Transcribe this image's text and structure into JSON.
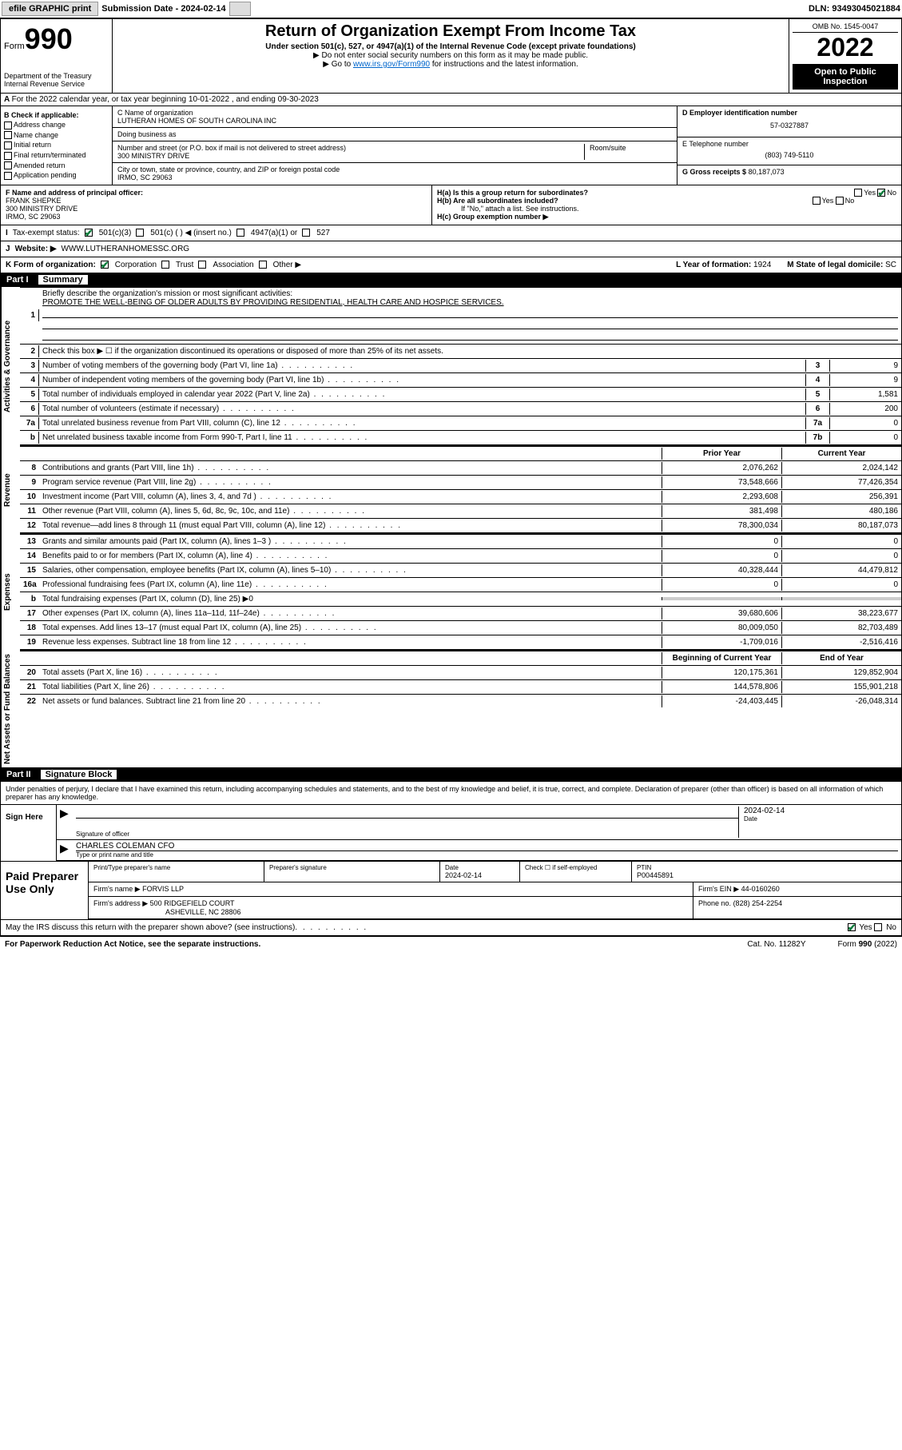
{
  "header": {
    "efile": "efile GRAPHIC print",
    "submission_label": "Submission Date - 2024-02-14",
    "dln": "DLN: 93493045021884"
  },
  "form_head": {
    "form_word": "Form",
    "form_num": "990",
    "dept": "Department of the Treasury",
    "irs": "Internal Revenue Service",
    "title": "Return of Organization Exempt From Income Tax",
    "subtitle": "Under section 501(c), 527, or 4947(a)(1) of the Internal Revenue Code (except private foundations)",
    "note1": "▶ Do not enter social security numbers on this form as it may be made public.",
    "note2_pre": "▶ Go to ",
    "note2_link": "www.irs.gov/Form990",
    "note2_post": " for instructions and the latest information.",
    "omb": "OMB No. 1545-0047",
    "year": "2022",
    "open": "Open to Public Inspection"
  },
  "row_a": "For the 2022 calendar year, or tax year beginning 10-01-2022   , and ending 09-30-2023",
  "col_b": {
    "header": "B Check if applicable:",
    "items": [
      "Address change",
      "Name change",
      "Initial return",
      "Final return/terminated",
      "Amended return",
      "Application pending"
    ]
  },
  "col_c": {
    "c_label": "C Name of organization",
    "org_name": "LUTHERAN HOMES OF SOUTH CAROLINA INC",
    "dba_label": "Doing business as",
    "dba": "",
    "addr_label": "Number and street (or P.O. box if mail is not delivered to street address)",
    "room_label": "Room/suite",
    "street": "300 MINISTRY DRIVE",
    "city_label": "City or town, state or province, country, and ZIP or foreign postal code",
    "city": "IRMO, SC  29063",
    "f_label": "F Name and address of principal officer:",
    "officer_name": "FRANK SHEPKE",
    "officer_addr1": "300 MINISTRY DRIVE",
    "officer_addr2": "IRMO, SC  29063"
  },
  "col_d": {
    "d_label": "D Employer identification number",
    "ein": "57-0327887",
    "e_label": "E Telephone number",
    "phone": "(803) 749-5110",
    "g_label": "G Gross receipts $",
    "gross": "80,187,073",
    "ha_label": "H(a)  Is this a group return for subordinates?",
    "hb_label": "H(b)  Are all subordinates included?",
    "hb_note": "If \"No,\" attach a list. See instructions.",
    "hc_label": "H(c)  Group exemption number ▶",
    "yes": "Yes",
    "no": "No"
  },
  "row_i": {
    "label": "Tax-exempt status:",
    "opt1": "501(c)(3)",
    "opt2": "501(c) (   ) ◀ (insert no.)",
    "opt3": "4947(a)(1) or",
    "opt4": "527"
  },
  "row_j": {
    "label": "Website: ▶",
    "val": "WWW.LUTHERANHOMESSC.ORG"
  },
  "row_k": {
    "label": "K Form of organization:",
    "opts": [
      "Corporation",
      "Trust",
      "Association",
      "Other ▶"
    ],
    "l_label": "L Year of formation:",
    "l_val": "1924",
    "m_label": "M State of legal domicile:",
    "m_val": "SC"
  },
  "part1": {
    "part": "Part I",
    "title": "Summary",
    "vlabels": [
      "Activities & Governance",
      "Revenue",
      "Expenses",
      "Net Assets or Fund Balances"
    ],
    "l1_label": "Briefly describe the organization's mission or most significant activities:",
    "l1_text": "PROMOTE THE WELL-BEING OF OLDER ADULTS BY PROVIDING RESIDENTIAL, HEALTH CARE AND HOSPICE SERVICES.",
    "l2": "Check this box ▶ ☐  if the organization discontinued its operations or disposed of more than 25% of its net assets.",
    "lines_gov": [
      {
        "n": "3",
        "d": "Number of voting members of the governing body (Part VI, line 1a)",
        "b": "3",
        "v": "9"
      },
      {
        "n": "4",
        "d": "Number of independent voting members of the governing body (Part VI, line 1b)",
        "b": "4",
        "v": "9"
      },
      {
        "n": "5",
        "d": "Total number of individuals employed in calendar year 2022 (Part V, line 2a)",
        "b": "5",
        "v": "1,581"
      },
      {
        "n": "6",
        "d": "Total number of volunteers (estimate if necessary)",
        "b": "6",
        "v": "200"
      },
      {
        "n": "7a",
        "d": "Total unrelated business revenue from Part VIII, column (C), line 12",
        "b": "7a",
        "v": "0"
      },
      {
        "n": "b",
        "d": "Net unrelated business taxable income from Form 990-T, Part I, line 11",
        "b": "7b",
        "v": "0"
      }
    ],
    "py_label": "Prior Year",
    "cy_label": "Current Year",
    "lines_rev": [
      {
        "n": "8",
        "d": "Contributions and grants (Part VIII, line 1h)",
        "py": "2,076,262",
        "cy": "2,024,142"
      },
      {
        "n": "9",
        "d": "Program service revenue (Part VIII, line 2g)",
        "py": "73,548,666",
        "cy": "77,426,354"
      },
      {
        "n": "10",
        "d": "Investment income (Part VIII, column (A), lines 3, 4, and 7d )",
        "py": "2,293,608",
        "cy": "256,391"
      },
      {
        "n": "11",
        "d": "Other revenue (Part VIII, column (A), lines 5, 6d, 8c, 9c, 10c, and 11e)",
        "py": "381,498",
        "cy": "480,186"
      },
      {
        "n": "12",
        "d": "Total revenue—add lines 8 through 11 (must equal Part VIII, column (A), line 12)",
        "py": "78,300,034",
        "cy": "80,187,073"
      }
    ],
    "lines_exp": [
      {
        "n": "13",
        "d": "Grants and similar amounts paid (Part IX, column (A), lines 1–3 )",
        "py": "0",
        "cy": "0"
      },
      {
        "n": "14",
        "d": "Benefits paid to or for members (Part IX, column (A), line 4)",
        "py": "0",
        "cy": "0"
      },
      {
        "n": "15",
        "d": "Salaries, other compensation, employee benefits (Part IX, column (A), lines 5–10)",
        "py": "40,328,444",
        "cy": "44,479,812"
      },
      {
        "n": "16a",
        "d": "Professional fundraising fees (Part IX, column (A), line 11e)",
        "py": "0",
        "cy": "0"
      }
    ],
    "l16b": "Total fundraising expenses (Part IX, column (D), line 25) ▶0",
    "lines_exp2": [
      {
        "n": "17",
        "d": "Other expenses (Part IX, column (A), lines 11a–11d, 11f–24e)",
        "py": "39,680,606",
        "cy": "38,223,677"
      },
      {
        "n": "18",
        "d": "Total expenses. Add lines 13–17 (must equal Part IX, column (A), line 25)",
        "py": "80,009,050",
        "cy": "82,703,489"
      },
      {
        "n": "19",
        "d": "Revenue less expenses. Subtract line 18 from line 12",
        "py": "-1,709,016",
        "cy": "-2,516,416"
      }
    ],
    "boy_label": "Beginning of Current Year",
    "eoy_label": "End of Year",
    "lines_net": [
      {
        "n": "20",
        "d": "Total assets (Part X, line 16)",
        "py": "120,175,361",
        "cy": "129,852,904"
      },
      {
        "n": "21",
        "d": "Total liabilities (Part X, line 26)",
        "py": "144,578,806",
        "cy": "155,901,218"
      },
      {
        "n": "22",
        "d": "Net assets or fund balances. Subtract line 21 from line 20",
        "py": "-24,403,445",
        "cy": "-26,048,314"
      }
    ]
  },
  "part2": {
    "part": "Part II",
    "title": "Signature Block",
    "penalty": "Under penalties of perjury, I declare that I have examined this return, including accompanying schedules and statements, and to the best of my knowledge and belief, it is true, correct, and complete. Declaration of preparer (other than officer) is based on all information of which preparer has any knowledge.",
    "sign_here": "Sign Here",
    "sig_officer_label": "Signature of officer",
    "date_label": "Date",
    "sig_date": "2024-02-14",
    "officer_typed": "CHARLES COLEMAN CFO",
    "typed_label": "Type or print name and title",
    "paid_label": "Paid Preparer Use Only",
    "pr_name_label": "Print/Type preparer's name",
    "pr_sig_label": "Preparer's signature",
    "pr_date_label": "Date",
    "pr_date": "2024-02-14",
    "pr_check_label": "Check ☐ if self-employed",
    "ptin_label": "PTIN",
    "ptin": "P00445891",
    "firm_name_label": "Firm's name    ▶",
    "firm_name": "FORVIS LLP",
    "firm_ein_label": "Firm's EIN ▶",
    "firm_ein": "44-0160260",
    "firm_addr_label": "Firm's address ▶",
    "firm_addr1": "500 RIDGEFIELD COURT",
    "firm_addr2": "ASHEVILLE, NC  28806",
    "firm_phone_label": "Phone no.",
    "firm_phone": "(828) 254-2254",
    "discuss": "May the IRS discuss this return with the preparer shown above? (see instructions)"
  },
  "footer": {
    "left": "For Paperwork Reduction Act Notice, see the separate instructions.",
    "mid": "Cat. No. 11282Y",
    "right": "Form 990 (2022)"
  }
}
